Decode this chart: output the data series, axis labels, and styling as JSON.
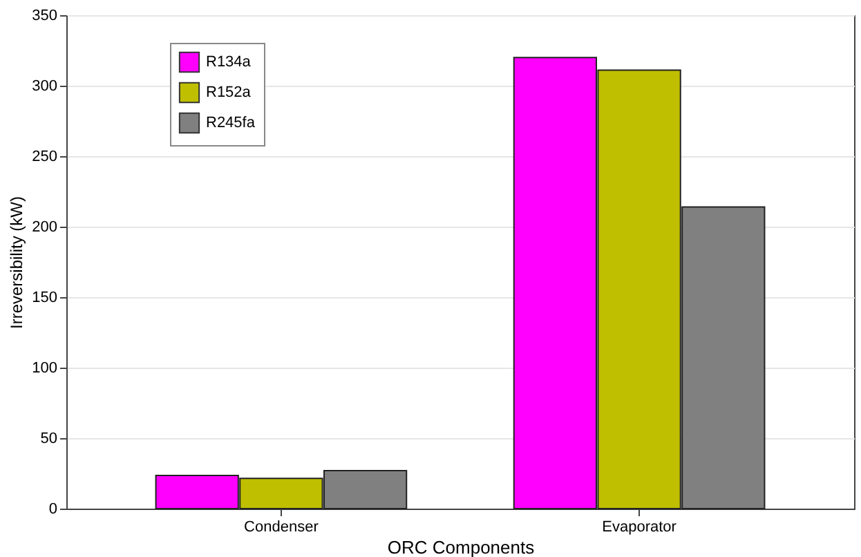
{
  "chart_data": {
    "type": "bar",
    "xlabel": "ORC Components",
    "ylabel": "Irreversibility (kW)",
    "categories": [
      "Condenser",
      "Evaporator"
    ],
    "series": [
      {
        "name": "R134a",
        "color": "#ff00ff",
        "values": [
          23.5,
          320
        ]
      },
      {
        "name": "R152a",
        "color": "#bfbf00",
        "values": [
          21.5,
          311
        ]
      },
      {
        "name": "R245fa",
        "color": "#808080",
        "values": [
          27,
          214
        ]
      }
    ],
    "ylim": [
      0,
      350
    ],
    "yticks": [
      0,
      50,
      100,
      150,
      200,
      250,
      300,
      350
    ],
    "grid": "y",
    "legend": "top left"
  }
}
